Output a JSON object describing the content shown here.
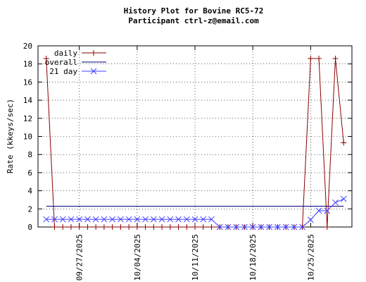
{
  "chart_data": {
    "type": "line",
    "title": "History Plot for Bovine RC5-72",
    "subtitle": "Participant ctrl-z@email.com",
    "y_label": "Rate (kkeys/sec)",
    "x": [
      "09/23/2025",
      "09/24/2025",
      "09/25/2025",
      "09/26/2025",
      "09/27/2025",
      "09/28/2025",
      "09/29/2025",
      "09/30/2025",
      "10/01/2025",
      "10/02/2025",
      "10/03/2025",
      "10/04/2025",
      "10/05/2025",
      "10/06/2025",
      "10/07/2025",
      "10/08/2025",
      "10/09/2025",
      "10/10/2025",
      "10/11/2025",
      "10/12/2025",
      "10/13/2025",
      "10/14/2025",
      "10/15/2025",
      "10/16/2025",
      "10/17/2025",
      "10/18/2025",
      "10/19/2025",
      "10/20/2025",
      "10/21/2025",
      "10/22/2025",
      "10/23/2025",
      "10/24/2025",
      "10/25/2025",
      "10/26/2025",
      "10/27/2025",
      "10/28/2025",
      "10/29/2025"
    ],
    "series": [
      {
        "name": "daily",
        "color": "#8b0000",
        "marker": "plus",
        "values": [
          18.6,
          0,
          0,
          0,
          0,
          0,
          0,
          0,
          0,
          0,
          0,
          0,
          0,
          0,
          0,
          0,
          0,
          0,
          0,
          0,
          0,
          0,
          0,
          0,
          0,
          0,
          0,
          0,
          0,
          0,
          0,
          0,
          18.6,
          18.6,
          0,
          18.6,
          9.3
        ]
      },
      {
        "name": "overall",
        "color": "#000080",
        "marker": "none",
        "values": [
          2.3,
          2.3,
          2.3,
          2.3,
          2.3,
          2.3,
          2.3,
          2.3,
          2.3,
          2.3,
          2.3,
          2.3,
          2.3,
          2.3,
          2.3,
          2.3,
          2.3,
          2.3,
          2.3,
          2.3,
          2.3,
          2.3,
          2.3,
          2.3,
          2.3,
          2.3,
          2.3,
          2.3,
          2.3,
          2.3,
          2.3,
          2.3,
          2.3,
          2.3,
          2.3,
          2.3,
          2.3
        ]
      },
      {
        "name": "21 day",
        "color": "#4040ff",
        "marker": "cross",
        "values": [
          0.85,
          0.85,
          0.85,
          0.85,
          0.85,
          0.85,
          0.85,
          0.85,
          0.85,
          0.85,
          0.85,
          0.85,
          0.85,
          0.85,
          0.85,
          0.85,
          0.85,
          0.85,
          0.85,
          0.85,
          0.85,
          0,
          0,
          0,
          0,
          0,
          0,
          0,
          0,
          0,
          0,
          0,
          0.8,
          1.8,
          1.8,
          2.7,
          3.1
        ]
      }
    ],
    "xlim": [
      "09/22/2025",
      "10/30/2025"
    ],
    "xticks": [
      "09/27/2025",
      "10/04/2025",
      "10/11/2025",
      "10/18/2025",
      "10/25/2025"
    ],
    "ylim": [
      0,
      20
    ],
    "yticks": [
      0,
      2,
      4,
      6,
      8,
      10,
      12,
      14,
      16,
      18,
      20
    ],
    "grid": true,
    "legend": "top-left"
  }
}
